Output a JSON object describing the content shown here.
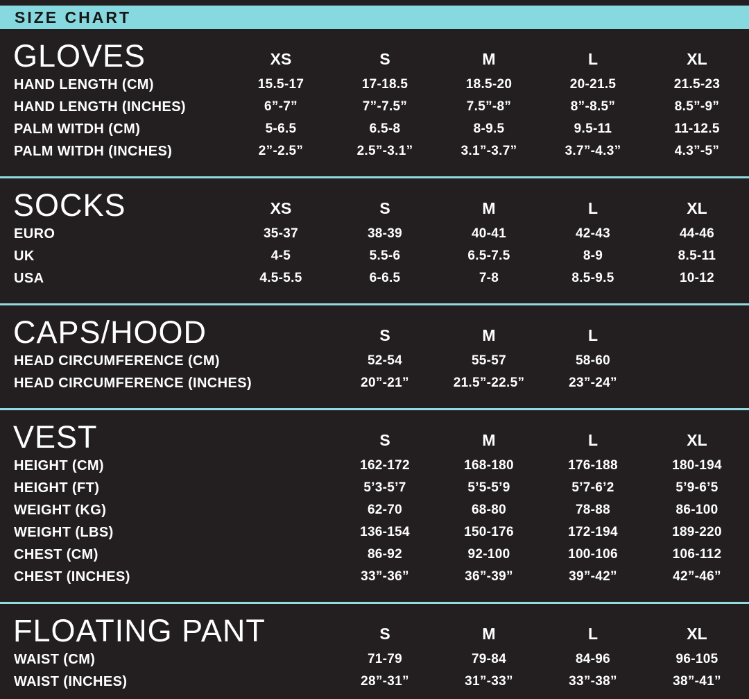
{
  "title": "SIZE CHART",
  "colors": {
    "accent_teal": "#86D9DE",
    "divider_teal": "#90DCE0",
    "background": "#231F20",
    "text": "#FFFFFF",
    "title_text": "#1A1718"
  },
  "sections": [
    {
      "name": "GLOVES",
      "columns": [
        "XS",
        "S",
        "M",
        "L",
        "XL"
      ],
      "rows": [
        {
          "label": "HAND LENGTH (CM)",
          "values": [
            "15.5-17",
            "17-18.5",
            "18.5-20",
            "20-21.5",
            "21.5-23"
          ]
        },
        {
          "label": "HAND LENGTH (INCHES)",
          "values": [
            "6”-7”",
            "7”-7.5”",
            "7.5”-8”",
            "8”-8.5”",
            "8.5”-9”"
          ]
        },
        {
          "label": "PALM WITDH (CM)",
          "values": [
            "5-6.5",
            "6.5-8",
            "8-9.5",
            "9.5-11",
            "11-12.5"
          ]
        },
        {
          "label": "PALM WITDH (INCHES)",
          "values": [
            "2”-2.5”",
            "2.5”-3.1”",
            "3.1”-3.7”",
            "3.7”-4.3”",
            "4.3”-5”"
          ]
        }
      ]
    },
    {
      "name": "SOCKS",
      "columns": [
        "XS",
        "S",
        "M",
        "L",
        "XL"
      ],
      "rows": [
        {
          "label": "EURO",
          "values": [
            "35-37",
            "38-39",
            "40-41",
            "42-43",
            "44-46"
          ]
        },
        {
          "label": "UK",
          "values": [
            "4-5",
            "5.5-6",
            "6.5-7.5",
            "8-9",
            "8.5-11"
          ]
        },
        {
          "label": "USA",
          "values": [
            "4.5-5.5",
            "6-6.5",
            "7-8",
            "8.5-9.5",
            "10-12"
          ]
        }
      ]
    },
    {
      "name": "CAPS/HOOD",
      "columns": [
        "",
        "S",
        "M",
        "L",
        ""
      ],
      "rows": [
        {
          "label": "HEAD CIRCUMFERENCE (CM)",
          "values": [
            "",
            "52-54",
            "55-57",
            "58-60",
            ""
          ]
        },
        {
          "label": "HEAD CIRCUMFERENCE (INCHES)",
          "values": [
            "",
            "20”-21”",
            "21.5”-22.5”",
            "23”-24”",
            ""
          ]
        }
      ]
    },
    {
      "name": "VEST",
      "columns": [
        "",
        "S",
        "M",
        "L",
        "XL"
      ],
      "rows": [
        {
          "label": "HEIGHT (CM)",
          "values": [
            "",
            "162-172",
            "168-180",
            "176-188",
            "180-194"
          ]
        },
        {
          "label": "HEIGHT (FT)",
          "values": [
            "",
            "5’3-5’7",
            "5’5-5’9",
            "5’7-6’2",
            "5’9-6’5"
          ]
        },
        {
          "label": "WEIGHT (KG)",
          "values": [
            "",
            "62-70",
            "68-80",
            "78-88",
            "86-100"
          ]
        },
        {
          "label": "WEIGHT (LBS)",
          "values": [
            "",
            "136-154",
            "150-176",
            "172-194",
            "189-220"
          ]
        },
        {
          "label": "CHEST (CM)",
          "values": [
            "",
            "86-92",
            "92-100",
            "100-106",
            "106-112"
          ]
        },
        {
          "label": "CHEST (INCHES)",
          "values": [
            "",
            "33”-36”",
            "36”-39”",
            "39”-42”",
            "42”-46”"
          ]
        }
      ]
    },
    {
      "name": "FLOATING PANT",
      "columns": [
        "",
        "S",
        "M",
        "L",
        "XL"
      ],
      "rows": [
        {
          "label": "WAIST (CM)",
          "values": [
            "",
            "71-79",
            "79-84",
            "84-96",
            "96-105"
          ]
        },
        {
          "label": "WAIST (INCHES)",
          "values": [
            "",
            "28”-31”",
            "31”-33”",
            "33”-38”",
            "38”-41”"
          ]
        }
      ]
    }
  ]
}
